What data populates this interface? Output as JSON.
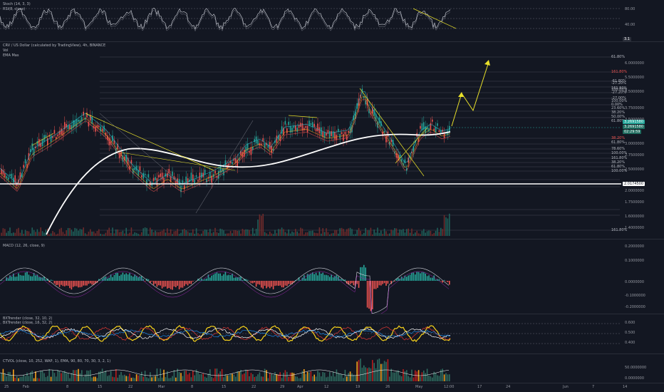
{
  "panes": {
    "stoch": {
      "labels": [
        "Stoch (14, 3, 3)",
        "RSI(8, close)"
      ],
      "ticks": [
        "80.00",
        "40.00"
      ],
      "price_tag": "3.1"
    },
    "main": {
      "labels": [
        "CRV / US Dollar (calculated by TradingView), 4h, BINANCE",
        "Vol",
        "EMA Mas"
      ],
      "price_ticks": [
        "6.0000000",
        "5.5000000",
        "4.5000000",
        "3.7500000",
        "3.5000000",
        "3.0000000",
        "2.7500000",
        "2.5000000",
        "2.0000000",
        "1.7500000",
        "1.6000000",
        "1.4000000"
      ],
      "fib_labels": [
        "61.80%",
        "161.80%",
        "-61.80%",
        "-27.20%",
        "161.80%",
        "100.00%",
        "-27.20%",
        "-27.00%",
        "100.00%",
        "0.00%",
        "23.60%",
        "38.20%",
        "50.00%",
        "61.80%",
        "38.20%",
        "61.80%",
        "78.60%",
        "100.00%",
        "161.80%",
        "38.20%",
        "61.80%",
        "100.00%",
        "161.80%"
      ],
      "current_price": "3.2691580",
      "price_tag_2": "3.2691580",
      "price_tag_3": "02:29:59",
      "support_tag": "2.0174500"
    },
    "macd": {
      "label": "MACD (12, 26, close, 9)",
      "ticks": [
        "0.2000000",
        "0.1000000",
        "0.0000000",
        "-0.1000000",
        "-0.2000000"
      ]
    },
    "bollinger": {
      "labels": [
        "BXTrender (close, 32, 10, 2)",
        "BXTrender (close, 16, 32, 2)"
      ],
      "ticks": [
        "0.600",
        "0.500",
        "0.400"
      ]
    },
    "volume": {
      "label": "CTVOL (close, 10, 252, WAP, 1), EMA, 90, 80, 70, 30, 3, 2, 1)",
      "ticks": [
        "50.0000000",
        "0.0000000"
      ]
    }
  },
  "dates": [
    "25",
    "Feb",
    "8",
    "15",
    "22",
    "Mar",
    "8",
    "15",
    "22",
    "29",
    "Apr",
    "12",
    "19",
    "26",
    "May",
    "12:00",
    "17",
    "24",
    "Jun",
    "7",
    "14"
  ],
  "colors": {
    "bg": "#131722",
    "up": "#26a69a",
    "down": "#ef5350",
    "yellow": "#e8e02a",
    "white": "#ffffff"
  }
}
